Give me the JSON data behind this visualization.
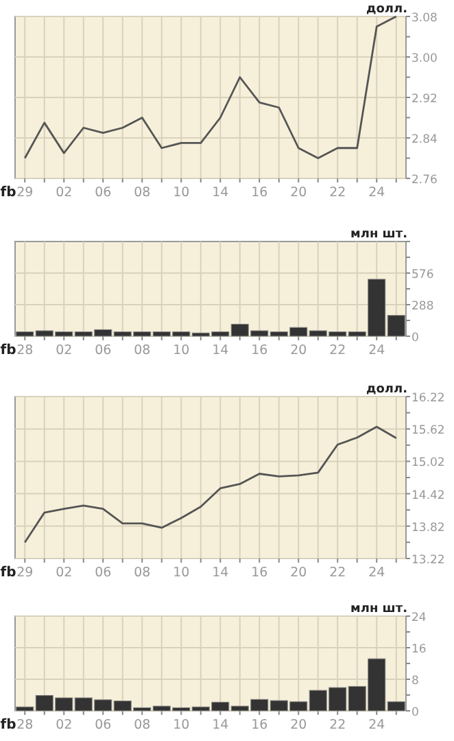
{
  "chart_data": [
    {
      "type": "line",
      "ylabel": "долл.",
      "xlabel": "fb",
      "categories": [
        "29",
        null,
        "02",
        null,
        "06",
        null,
        "08",
        null,
        "10",
        null,
        "14",
        null,
        "16",
        null,
        "20",
        null,
        "22",
        null,
        "24",
        null
      ],
      "values": [
        2.8,
        2.87,
        2.81,
        2.86,
        2.85,
        2.86,
        2.88,
        2.82,
        2.83,
        2.83,
        2.88,
        2.96,
        2.91,
        2.9,
        2.82,
        2.8,
        2.82,
        2.82,
        3.06,
        3.08
      ],
      "color": "#555555",
      "ylim": [
        2.76,
        3.08
      ],
      "yticks": [
        2.76,
        {
          "value": 2.8,
          "label": null
        },
        2.84,
        {
          "value": 2.88,
          "label": null
        },
        2.92,
        {
          "value": 2.96,
          "label": null
        },
        {
          "value": 3,
          "label": "3.00"
        },
        {
          "value": 3.04,
          "label": null
        },
        3.08
      ],
      "grid": true
    },
    {
      "type": "bar",
      "ylabel": "млн шт.",
      "xlabel": "fb",
      "categories": [
        "28",
        null,
        "02",
        null,
        "06",
        null,
        "08",
        null,
        "10",
        null,
        "14",
        null,
        "16",
        null,
        "20",
        null,
        "22",
        null,
        "24",
        null
      ],
      "values": [
        40,
        50,
        40,
        40,
        60,
        40,
        40,
        40,
        40,
        30,
        40,
        110,
        50,
        40,
        80,
        50,
        40,
        40,
        520,
        190
      ],
      "color": "#333333",
      "ylim": [
        0,
        864
      ],
      "yticks": [
        0,
        {
          "value": 144,
          "label": null
        },
        288,
        {
          "value": 432,
          "label": null
        },
        576,
        {
          "value": 720,
          "label": null
        },
        {
          "value": 864,
          "label": null
        }
      ],
      "grid": true
    },
    {
      "type": "line",
      "ylabel": "долл.",
      "xlabel": "fb",
      "categories": [
        "29",
        null,
        "02",
        null,
        "06",
        null,
        "08",
        null,
        "10",
        null,
        "14",
        null,
        "16",
        null,
        "20",
        null,
        "22",
        null,
        "24",
        null
      ],
      "values": [
        13.52,
        14.07,
        14.14,
        14.2,
        14.14,
        13.87,
        13.87,
        13.79,
        13.97,
        14.18,
        14.52,
        14.6,
        14.79,
        14.74,
        14.76,
        14.81,
        15.33,
        15.46,
        15.66,
        15.45
      ],
      "color": "#555555",
      "ylim": [
        13.22,
        16.22
      ],
      "yticks": [
        13.22,
        {
          "value": 13.52,
          "label": null
        },
        13.82,
        {
          "value": 14.12,
          "label": null
        },
        14.42,
        {
          "value": 14.72,
          "label": null
        },
        15.02,
        {
          "value": 15.32,
          "label": null
        },
        15.62,
        {
          "value": 15.92,
          "label": null
        },
        16.22
      ],
      "grid": true
    },
    {
      "type": "bar",
      "ylabel": "млн шт.",
      "xlabel": "fb",
      "categories": [
        "28",
        null,
        "02",
        null,
        "06",
        null,
        "08",
        null,
        "10",
        null,
        "14",
        null,
        "16",
        null,
        "20",
        null,
        "22",
        null,
        "24",
        null
      ],
      "values": [
        1.0,
        3.9,
        3.3,
        3.3,
        2.8,
        2.5,
        0.8,
        1.2,
        0.8,
        1.0,
        2.2,
        1.2,
        2.9,
        2.6,
        2.3,
        5.2,
        5.9,
        6.2,
        13.2,
        2.3
      ],
      "color": "#333333",
      "ylim": [
        0,
        24
      ],
      "yticks": [
        0,
        {
          "value": 4,
          "label": null
        },
        8,
        {
          "value": 12,
          "label": null
        },
        16,
        {
          "value": 20,
          "label": null
        },
        24
      ],
      "grid": true
    }
  ]
}
